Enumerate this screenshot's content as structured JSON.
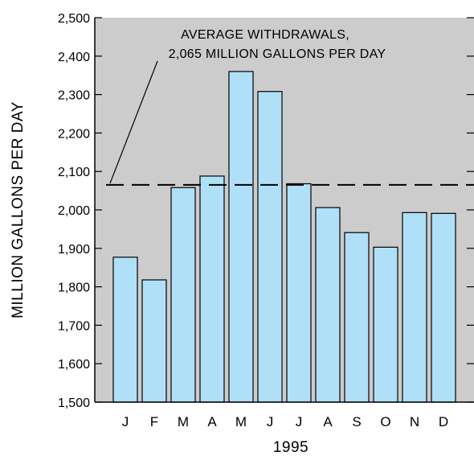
{
  "chart_data": {
    "type": "bar",
    "title": "",
    "xlabel": "1995",
    "ylabel": "MILLION GALLONS PER DAY",
    "categories": [
      "J",
      "F",
      "M",
      "A",
      "M",
      "J",
      "J",
      "A",
      "S",
      "O",
      "N",
      "D"
    ],
    "values": [
      1877,
      1818,
      2058,
      2088,
      2360,
      2308,
      2068,
      2006,
      1941,
      1903,
      1993,
      1991
    ],
    "ylim": [
      1500,
      2500
    ],
    "yticks": [
      1500,
      1600,
      1700,
      1800,
      1900,
      2000,
      2100,
      2200,
      2300,
      2400,
      2500
    ],
    "ytick_labels": [
      "1,500",
      "1,600",
      "1,700",
      "1,800",
      "1,900",
      "2,000",
      "2,100",
      "2,200",
      "2,300",
      "2,400",
      "2,500"
    ],
    "reference_line": {
      "value": 2065,
      "label_line1": "AVERAGE WITHDRAWALS,",
      "label_line2": "2,065 MILLION GALLONS PER DAY"
    },
    "grid": false,
    "colors": {
      "bar_fill": "#b0e0f8",
      "bar_stroke": "#000000",
      "plot_background": "#cccccc"
    }
  }
}
